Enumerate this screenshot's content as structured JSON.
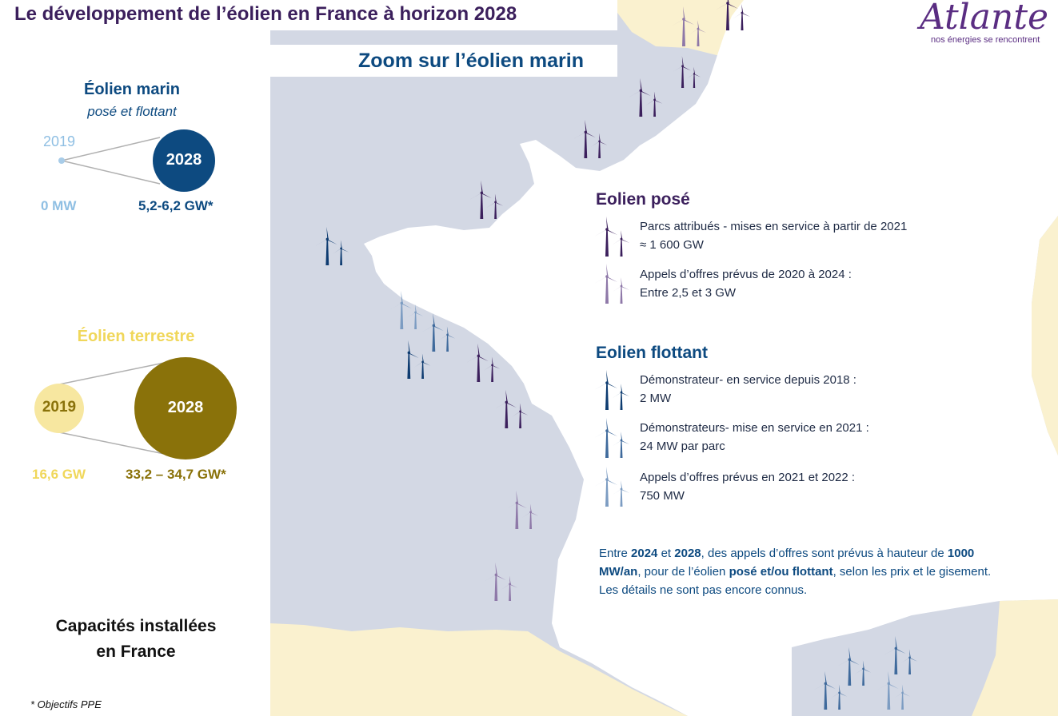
{
  "header": {
    "title": "Le développement de l’éolien en France à horizon 2028",
    "subtitle": "Zoom sur l’éolien marin"
  },
  "logo": {
    "word": "Atlante",
    "tagline": "nos énergies se rencontrent"
  },
  "marin": {
    "title": "Éolien marin",
    "subtitle": "posé et flottant",
    "year_start": "2019",
    "year_end": "2028",
    "value_start": "0 MW",
    "value_end": "5,2-6,2 GW*",
    "color_start": "#a8cce8",
    "color_end": "#0d4a80"
  },
  "terrestre": {
    "title": "Éolien terrestre",
    "year_start": "2019",
    "year_end": "2028",
    "value_start": "16,6 GW",
    "value_end": "33,2 – 34,7 GW*",
    "color_start": "#f7e7a0",
    "color_end": "#8a720a"
  },
  "footer": {
    "capacites_line1": "Capacités installées",
    "capacites_line2": "en France",
    "footnote": "* Objectifs PPE"
  },
  "legend": {
    "pose_title": "Eolien posé",
    "pose_items": [
      {
        "line1": "Parcs attribués - mises en service à partir de 2021",
        "line2": "≈ 1 600 GW",
        "icon": "turbine-dark-purple-icon"
      },
      {
        "line1": "Appels d’offres prévus de 2020 à 2024 :",
        "line2": "Entre 2,5 et 3 GW",
        "icon": "turbine-light-purple-icon"
      }
    ],
    "flottant_title": "Eolien flottant",
    "flottant_items": [
      {
        "line1": "Démonstrateur- en service depuis 2018 :",
        "line2": "2 MW",
        "icon": "turbine-navy-icon"
      },
      {
        "line1": "Démonstrateurs- mise en service en 2021 :",
        "line2": "24 MW par parc",
        "icon": "turbine-steel-blue-icon"
      },
      {
        "line1": "Appels d’offres prévus en 2021 et 2022 :",
        "line2": "750 MW",
        "icon": "turbine-pale-blue-icon"
      }
    ]
  },
  "note": {
    "p1": "Entre ",
    "b1": "2024",
    "p2": " et ",
    "b2": "2028",
    "p3": ", des appels d’offres sont prévus à hauteur de ",
    "b3": "1000 MW/an",
    "p4": ", pour de l’éolien ",
    "b4": "posé et/ou flottant",
    "p5": ", selon les prix et le gisement. Les détails ne sont pas encore connus."
  },
  "colors": {
    "sea": "#d3d8e4",
    "land_france": "#ffffff",
    "land_other": "#faf1cf",
    "turbine_dark_purple": "#3b1f5c",
    "turbine_light_purple": "#8e78a8",
    "turbine_navy": "#0d3b70",
    "turbine_steel_blue": "#3f6a9c",
    "turbine_pale_blue": "#7c9cc2"
  }
}
